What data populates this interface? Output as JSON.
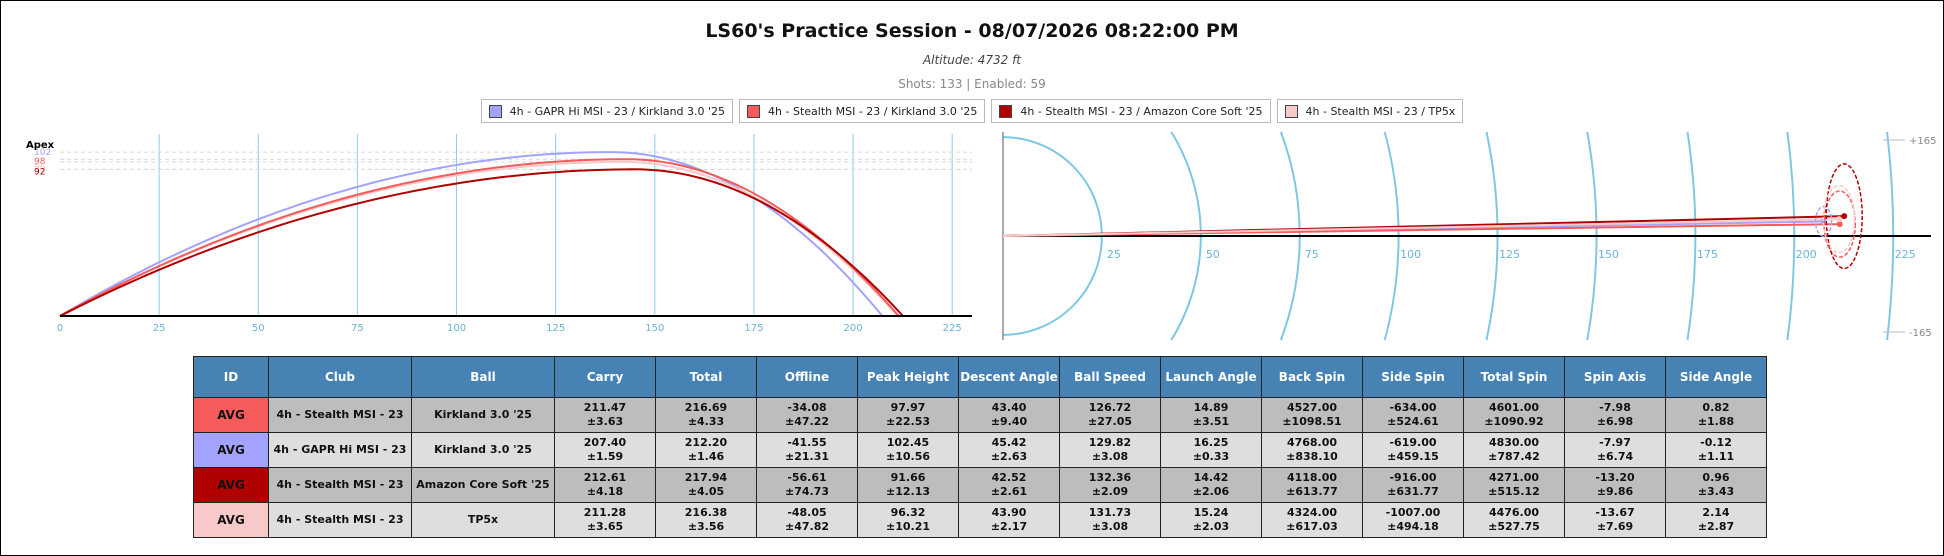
{
  "header": {
    "title": "LS60's Practice Session - 08/07/2026 08:22:00 PM",
    "altitude": "Altitude: 4732 ft",
    "shots": "Shots: 133 | Enabled: 59"
  },
  "legend": [
    {
      "label": "4h - GAPR Hi MSI - 23 / Kirkland 3.0 '25",
      "color": "#a3a3ff"
    },
    {
      "label": "4h - Stealth MSI - 23 / Kirkland 3.0 '25",
      "color": "#f55b5b"
    },
    {
      "label": "4h - Stealth MSI - 23 / Amazon Core Soft '25",
      "color": "#b00000"
    },
    {
      "label": "4h - Stealth MSI - 23 / TP5x",
      "color": "#f7c9c9"
    }
  ],
  "chart_data": [
    {
      "type": "line",
      "title": "",
      "ylabel": "Apex",
      "xlabel": "",
      "xlim": [
        0,
        230
      ],
      "ylim": [
        0,
        110
      ],
      "x_ticks": [
        "0",
        "25",
        "50",
        "75",
        "100",
        "125",
        "150",
        "175",
        "200",
        "225"
      ],
      "apex_labels": [
        {
          "text": "102",
          "value": 102.45,
          "color": "#a3a3ff"
        },
        {
          "text": "98",
          "value": 97.97,
          "color": "#f55b5b"
        },
        {
          "text": "96",
          "value": 96.32,
          "color": "#f7c9c9"
        },
        {
          "text": "92",
          "value": 91.66,
          "color": "#b00000"
        }
      ],
      "series": [
        {
          "color": "#a3a3ff",
          "apex_x": 139,
          "apex_y": 102.45,
          "land_x": 207.4
        },
        {
          "color": "#f7c9c9",
          "apex_x": 142,
          "apex_y": 96.32,
          "land_x": 211.3
        },
        {
          "color": "#f55b5b",
          "apex_x": 143,
          "apex_y": 97.97,
          "land_x": 211.5
        },
        {
          "color": "#b00000",
          "apex_x": 145,
          "apex_y": 91.66,
          "land_x": 212.6
        }
      ],
      "grid": "vertical",
      "legend": "top"
    },
    {
      "type": "scatter",
      "title": "",
      "xlim": [
        0,
        230
      ],
      "ylim": [
        -165,
        165
      ],
      "x_ticks": [
        "25",
        "50",
        "75",
        "100",
        "125",
        "150",
        "175",
        "200",
        "225"
      ],
      "y_ticks": [
        "-165",
        "+165"
      ],
      "series": [
        {
          "color": "#a3a3ff",
          "carry": 207.4,
          "offline": -41.55,
          "sd_carry": 1.59,
          "sd_offline": 21.31
        },
        {
          "color": "#f55b5b",
          "carry": 211.47,
          "offline": -34.08,
          "sd_carry": 3.63,
          "sd_offline": 47.22
        },
        {
          "color": "#b00000",
          "carry": 212.61,
          "offline": -56.61,
          "sd_carry": 4.18,
          "sd_offline": 74.73
        },
        {
          "color": "#f7c9c9",
          "carry": 211.28,
          "offline": -48.05,
          "sd_carry": 3.65,
          "sd_offline": 47.82
        }
      ]
    },
    {
      "type": "table",
      "columns": [
        "ID",
        "Club",
        "Ball",
        "Carry",
        "Total",
        "Offline",
        "Peak Height",
        "Descent Angle",
        "Ball Speed",
        "Launch Angle",
        "Back Spin",
        "Side Spin",
        "Total Spin",
        "Spin Axis",
        "Side Angle"
      ],
      "rows": [
        {
          "id": "AVG",
          "id_color": "#f55b5b",
          "club": "4h - Stealth MSI - 23",
          "ball": "Kirkland 3.0 '25",
          "values": [
            [
              "211.47",
              "±3.63"
            ],
            [
              "216.69",
              "±4.33"
            ],
            [
              "-34.08",
              "±47.22"
            ],
            [
              "97.97",
              "±22.53"
            ],
            [
              "43.40",
              "±9.40"
            ],
            [
              "126.72",
              "±27.05"
            ],
            [
              "14.89",
              "±3.51"
            ],
            [
              "4527.00",
              "±1098.51"
            ],
            [
              "-634.00",
              "±524.61"
            ],
            [
              "4601.00",
              "±1090.92"
            ],
            [
              "-7.98",
              "±6.98"
            ],
            [
              "0.82",
              "±1.88"
            ]
          ]
        },
        {
          "id": "AVG",
          "id_color": "#a3a3ff",
          "club": "4h - GAPR Hi MSI - 23",
          "ball": "Kirkland 3.0 '25",
          "values": [
            [
              "207.40",
              "±1.59"
            ],
            [
              "212.20",
              "±1.46"
            ],
            [
              "-41.55",
              "±21.31"
            ],
            [
              "102.45",
              "±10.56"
            ],
            [
              "45.42",
              "±2.63"
            ],
            [
              "129.82",
              "±3.08"
            ],
            [
              "16.25",
              "±0.33"
            ],
            [
              "4768.00",
              "±838.10"
            ],
            [
              "-619.00",
              "±459.15"
            ],
            [
              "4830.00",
              "±787.42"
            ],
            [
              "-7.97",
              "±6.74"
            ],
            [
              "-0.12",
              "±1.11"
            ]
          ]
        },
        {
          "id": "AVG",
          "id_color": "#b00000",
          "club": "4h - Stealth MSI - 23",
          "ball": "Amazon Core Soft '25",
          "values": [
            [
              "212.61",
              "±4.18"
            ],
            [
              "217.94",
              "±4.05"
            ],
            [
              "-56.61",
              "±74.73"
            ],
            [
              "91.66",
              "±12.13"
            ],
            [
              "42.52",
              "±2.61"
            ],
            [
              "132.36",
              "±2.09"
            ],
            [
              "14.42",
              "±2.06"
            ],
            [
              "4118.00",
              "±613.77"
            ],
            [
              "-916.00",
              "±631.77"
            ],
            [
              "4271.00",
              "±515.12"
            ],
            [
              "-13.20",
              "±9.86"
            ],
            [
              "0.96",
              "±3.43"
            ]
          ]
        },
        {
          "id": "AVG",
          "id_color": "#f7c9c9",
          "club": "4h - Stealth MSI - 23",
          "ball": "TP5x",
          "values": [
            [
              "211.28",
              "±3.65"
            ],
            [
              "216.38",
              "±3.56"
            ],
            [
              "-48.05",
              "±47.82"
            ],
            [
              "96.32",
              "±10.21"
            ],
            [
              "43.90",
              "±2.17"
            ],
            [
              "131.73",
              "±3.08"
            ],
            [
              "15.24",
              "±2.03"
            ],
            [
              "4324.00",
              "±617.03"
            ],
            [
              "-1007.00",
              "±494.18"
            ],
            [
              "4476.00",
              "±527.75"
            ],
            [
              "-13.67",
              "±7.69"
            ],
            [
              "2.14",
              "±2.87"
            ]
          ]
        }
      ]
    }
  ]
}
